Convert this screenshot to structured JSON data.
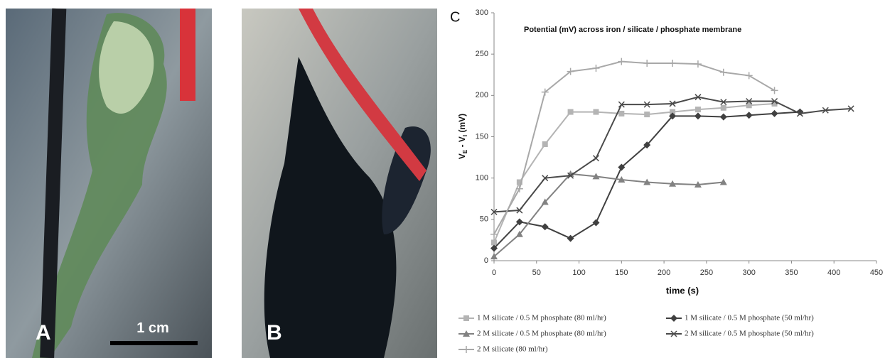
{
  "photos": [
    {
      "label": "A",
      "scale_bar": "1 cm"
    },
    {
      "label": "B"
    }
  ],
  "panel_label": "C",
  "chart_data": {
    "type": "line",
    "title": "Potential (mV) across iron / silicate / phosphate membrane",
    "x_label": "time (s)",
    "y_label_parts": [
      "V",
      "E",
      " - V",
      "I",
      " (mV)"
    ],
    "x": [
      0,
      30,
      60,
      90,
      120,
      150,
      180,
      210,
      240,
      270,
      300,
      330,
      360,
      390,
      420
    ],
    "xlim": [
      0,
      450
    ],
    "xticks": [
      0,
      50,
      100,
      150,
      200,
      250,
      300,
      350,
      400,
      450
    ],
    "ylim": [
      0,
      300
    ],
    "yticks": [
      0,
      50,
      100,
      150,
      200,
      250,
      300
    ],
    "grid": false,
    "legend": "bottom",
    "series": [
      {
        "name": "1 M silicate / 0.5 M phosphate (80 ml/hr)",
        "color": "#b4b4b4",
        "marker": "square",
        "values": [
          22,
          95,
          141,
          180,
          180,
          178,
          177,
          180,
          183,
          185,
          188,
          190,
          null,
          null,
          null
        ]
      },
      {
        "name": "1 M silicate / 0.5 M phosphate (50 ml/hr)",
        "color": "#404040",
        "marker": "diamond",
        "values": [
          15,
          47,
          41,
          27,
          46,
          113,
          140,
          175,
          175,
          174,
          176,
          178,
          180,
          null,
          null
        ]
      },
      {
        "name": "2 M silicate / 0.5 M phosphate (80 ml/hr)",
        "color": "#828282",
        "marker": "triangle",
        "values": [
          5,
          32,
          71,
          105,
          102,
          98,
          95,
          93,
          92,
          95,
          null,
          null,
          null,
          null,
          null
        ]
      },
      {
        "name": "2 M silicate / 0.5 M phosphate (50 ml/hr)",
        "color": "#4a4a4a",
        "marker": "cross",
        "values": [
          59,
          61,
          100,
          103,
          124,
          189,
          189,
          190,
          198,
          192,
          193,
          193,
          178,
          182,
          184
        ]
      },
      {
        "name": "2 M silicate (80 ml/hr)",
        "color": "#a8a8a8",
        "marker": "plus",
        "values": [
          32,
          87,
          204,
          229,
          233,
          241,
          239,
          239,
          238,
          228,
          224,
          206,
          null,
          null,
          null
        ]
      }
    ]
  }
}
